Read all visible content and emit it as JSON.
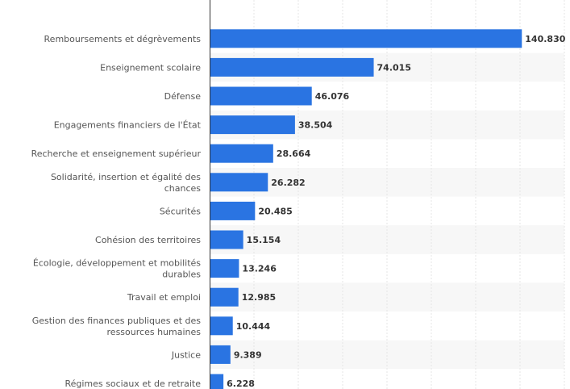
{
  "chart_data": {
    "type": "bar",
    "orientation": "horizontal",
    "categories": [
      [
        "Remboursements et dégrèvements"
      ],
      [
        "Enseignement scolaire"
      ],
      [
        "Défense"
      ],
      [
        "Engagements financiers de l'État"
      ],
      [
        "Recherche et enseignement supérieur"
      ],
      [
        "Solidarité, insertion et égalité des",
        "chances"
      ],
      [
        "Sécurités"
      ],
      [
        "Cohésion des territoires"
      ],
      [
        "Écologie, développement et mobilités",
        "durables"
      ],
      [
        "Travail et emploi"
      ],
      [
        "Gestion des finances publiques et des",
        "ressources humaines"
      ],
      [
        "Justice"
      ],
      [
        "Régimes sociaux et de retraite"
      ]
    ],
    "values": [
      140.83,
      74.015,
      46.076,
      38.504,
      28.664,
      26.282,
      20.485,
      15.154,
      13.246,
      12.985,
      10.444,
      9.389,
      6.228
    ],
    "value_labels": [
      "140.830",
      "74.015",
      "46.076",
      "38.504",
      "28.664",
      "26.282",
      "20.485",
      "15.154",
      "13.246",
      "12.985",
      "10.444",
      "9.389",
      "6.228"
    ],
    "xlim": [
      0,
      160
    ],
    "grid": true,
    "bar_color": "#2a74e2",
    "band_color": "#f7f7f7"
  }
}
